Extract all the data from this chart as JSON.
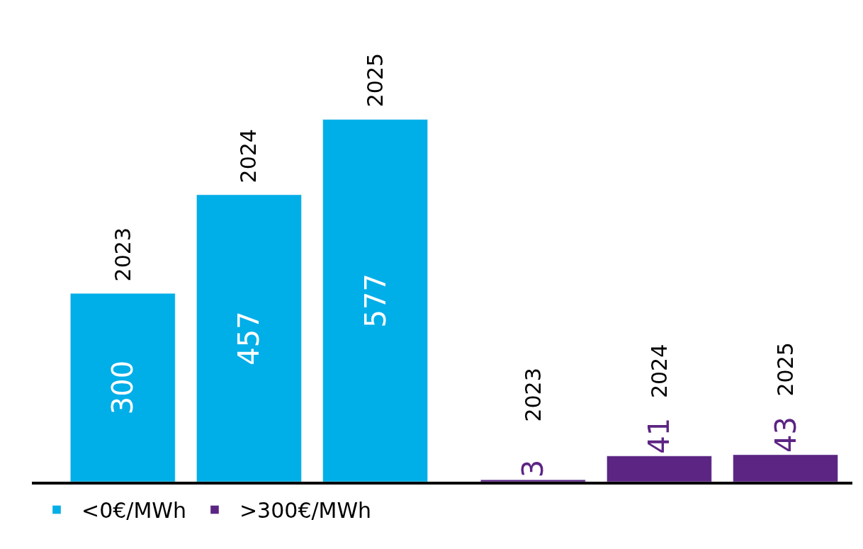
{
  "chart_data": [
    {
      "type": "bar",
      "categories": [
        null,
        null,
        null
      ],
      "annotations": [
        "2023",
        "2024",
        "2025"
      ],
      "series": [
        {
          "name": "<0€/MWh",
          "color": "#00aee8",
          "values": [
            300,
            457,
            577
          ]
        }
      ],
      "data_labels": true,
      "legend": "bottom left",
      "tick_labels": false
    },
    {
      "type": "bar",
      "categories": [
        "2023",
        "2024",
        "2025"
      ],
      "series": [
        {
          "name": ">300€/MWh",
          "color": "#5c2483",
          "values": [
            3,
            41,
            43
          ]
        }
      ],
      "data_labels": true,
      "legend": "bottom left",
      "tick_labels": false
    }
  ]
}
